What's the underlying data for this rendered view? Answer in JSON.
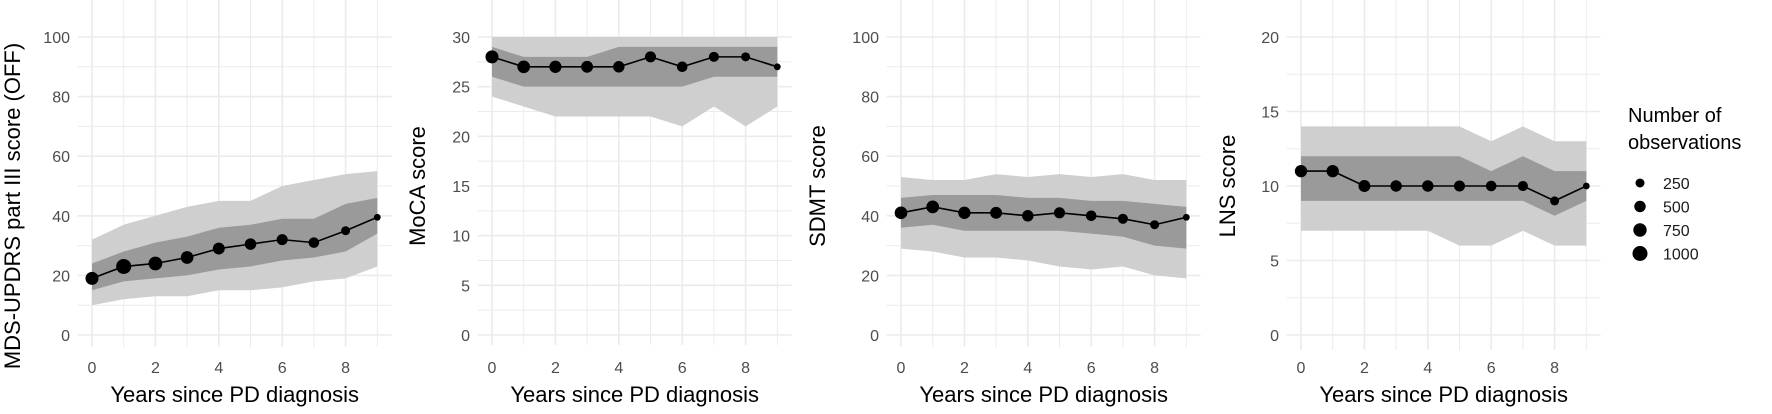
{
  "colors": {
    "outer_band": "#cfcfcf",
    "inner_band": "#9a9a9a",
    "line": "#000000",
    "grid": "#ebebeb"
  },
  "legend": {
    "title_line1": "Number of",
    "title_line2": "observations",
    "entries": [
      {
        "label": "250",
        "n": 250
      },
      {
        "label": "500",
        "n": 500
      },
      {
        "label": "750",
        "n": 750
      },
      {
        "label": "1000",
        "n": 1000
      }
    ]
  },
  "chart_data": [
    {
      "type": "line",
      "xlabel": "Years since PD diagnosis",
      "ylabel": "MDS-UPDRS part III score (OFF)",
      "x": [
        0,
        1,
        2,
        3,
        4,
        5,
        6,
        7,
        8,
        9
      ],
      "xticks": [
        "0",
        "2",
        "4",
        "6",
        "8"
      ],
      "ylim": [
        0,
        100
      ],
      "yticks": [
        "0",
        "20",
        "40",
        "60",
        "80",
        "100"
      ],
      "mean": [
        19,
        23,
        24,
        26,
        29,
        30.5,
        32,
        31,
        35,
        39.5
      ],
      "n": [
        700,
        1000,
        800,
        650,
        550,
        500,
        450,
        400,
        250,
        100
      ],
      "inner_upper": [
        24,
        28,
        31,
        33,
        36,
        37,
        39,
        39,
        44,
        46
      ],
      "inner_lower": [
        15,
        18,
        19,
        20,
        22,
        23,
        25,
        26,
        28,
        34
      ],
      "outer_upper": [
        32,
        37,
        40,
        43,
        45,
        45,
        50,
        52,
        54,
        55
      ],
      "outer_lower": [
        10,
        12,
        13,
        13,
        15,
        15,
        16,
        18,
        19,
        23
      ],
      "grid": true
    },
    {
      "type": "line",
      "xlabel": "Years since PD diagnosis",
      "ylabel": "MoCA score",
      "x": [
        0,
        1,
        2,
        3,
        4,
        5,
        6,
        7,
        8,
        9
      ],
      "xticks": [
        "0",
        "2",
        "4",
        "6",
        "8"
      ],
      "ylim": [
        0,
        30
      ],
      "yticks": [
        "0",
        "5",
        "10",
        "15",
        "20",
        "25",
        "30"
      ],
      "mean": [
        28,
        27,
        27,
        27,
        27,
        28,
        27,
        28,
        28,
        27
      ],
      "n": [
        700,
        650,
        600,
        550,
        500,
        450,
        400,
        350,
        250,
        100
      ],
      "inner_upper": [
        29,
        28,
        28,
        28,
        29,
        29,
        29,
        29,
        29,
        29
      ],
      "inner_lower": [
        26,
        25,
        25,
        25,
        25,
        25,
        25,
        26,
        26,
        26
      ],
      "outer_upper": [
        30,
        30,
        30,
        30,
        30,
        30,
        30,
        30,
        30,
        30
      ],
      "outer_lower": [
        24,
        23,
        22,
        22,
        22,
        22,
        21,
        23,
        21,
        23
      ],
      "grid": true
    },
    {
      "type": "line",
      "xlabel": "Years since PD diagnosis",
      "ylabel": "SDMT score",
      "x": [
        0,
        1,
        2,
        3,
        4,
        5,
        6,
        7,
        8,
        9
      ],
      "xticks": [
        "0",
        "2",
        "4",
        "6",
        "8"
      ],
      "ylim": [
        0,
        100
      ],
      "yticks": [
        "0",
        "20",
        "40",
        "60",
        "80",
        "100"
      ],
      "mean": [
        41,
        43,
        41,
        41,
        40,
        41,
        40,
        39,
        37,
        39.5
      ],
      "n": [
        650,
        650,
        600,
        550,
        500,
        450,
        400,
        350,
        250,
        100
      ],
      "inner_upper": [
        46,
        47,
        47,
        47,
        46,
        46,
        45,
        45,
        44,
        43
      ],
      "inner_lower": [
        36,
        37,
        35,
        35,
        35,
        35,
        34,
        33,
        30,
        29
      ],
      "outer_upper": [
        53,
        52,
        52,
        54,
        53,
        54,
        53,
        54,
        52,
        52
      ],
      "outer_lower": [
        29,
        28,
        26,
        26,
        25,
        23,
        22,
        23,
        20,
        19
      ],
      "grid": true
    },
    {
      "type": "line",
      "xlabel": "Years since PD diagnosis",
      "ylabel": "LNS score",
      "x": [
        0,
        1,
        2,
        3,
        4,
        5,
        6,
        7,
        8,
        9
      ],
      "xticks": [
        "0",
        "2",
        "4",
        "6",
        "8"
      ],
      "ylim": [
        0,
        20
      ],
      "yticks": [
        "0",
        "5",
        "10",
        "15",
        "20"
      ],
      "mean": [
        11,
        11,
        10,
        10,
        10,
        10,
        10,
        10,
        9,
        10
      ],
      "n": [
        600,
        600,
        550,
        500,
        500,
        450,
        400,
        350,
        250,
        100
      ],
      "inner_upper": [
        12,
        12,
        12,
        12,
        12,
        12,
        11,
        12,
        11,
        11
      ],
      "inner_lower": [
        9,
        9,
        9,
        9,
        9,
        9,
        9,
        9,
        8,
        9
      ],
      "outer_upper": [
        14,
        14,
        14,
        14,
        14,
        14,
        13,
        14,
        13,
        13
      ],
      "outer_lower": [
        7,
        7,
        7,
        7,
        7,
        6,
        6,
        7,
        6,
        6
      ],
      "grid": true
    }
  ]
}
